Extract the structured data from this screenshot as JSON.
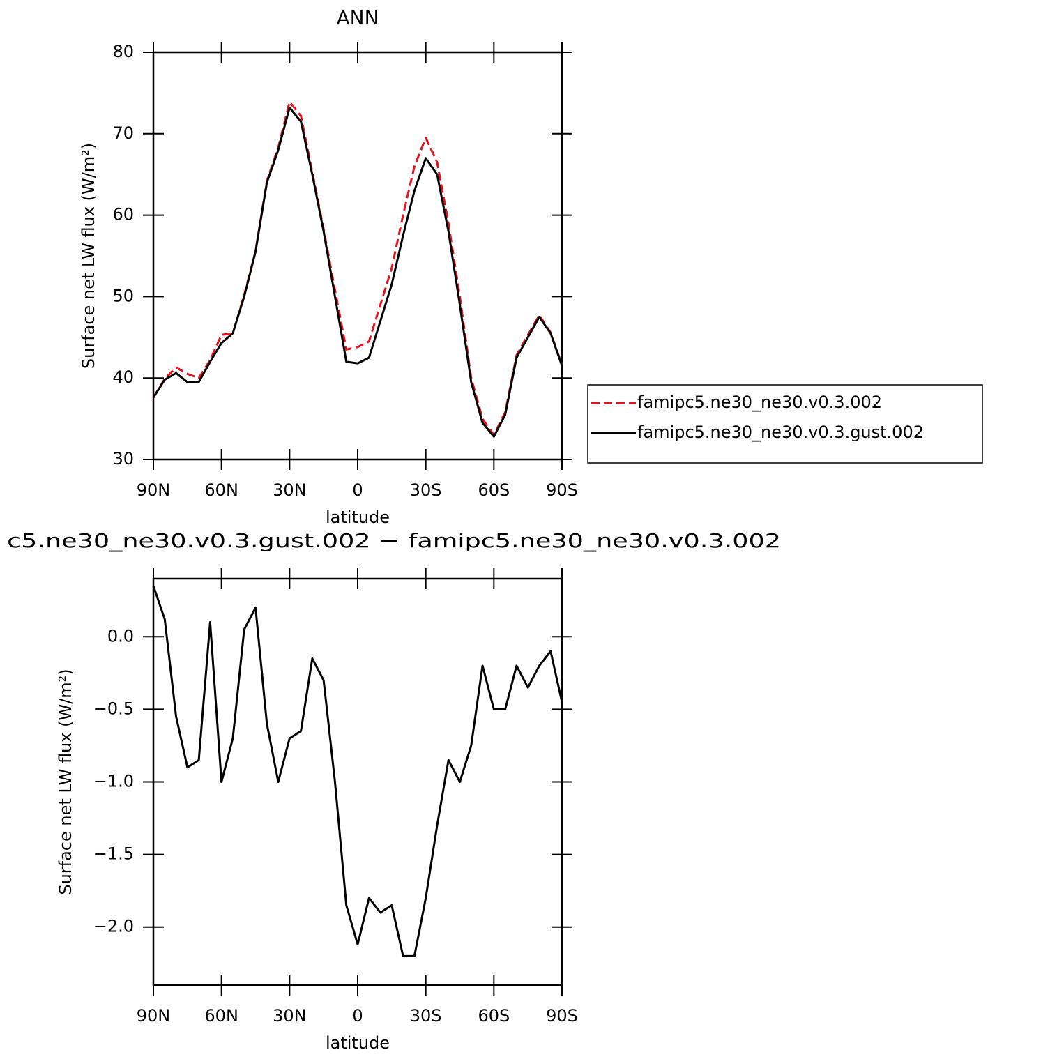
{
  "chart_data": [
    {
      "type": "line",
      "title": "ANN",
      "xlabel": "latitude",
      "ylabel": "Surface net LW flux (W/m²)",
      "x": [
        90,
        85,
        80,
        75,
        70,
        65,
        60,
        55,
        50,
        45,
        40,
        35,
        30,
        25,
        20,
        15,
        10,
        5,
        0,
        -5,
        -10,
        -15,
        -20,
        -25,
        -30,
        -35,
        -40,
        -45,
        -50,
        -55,
        -60,
        -65,
        -70,
        -75,
        -80,
        -85,
        -90
      ],
      "xlim": [
        90,
        -90
      ],
      "xticks": [
        {
          "value": 90,
          "label": "90N"
        },
        {
          "value": 60,
          "label": "60N"
        },
        {
          "value": 30,
          "label": "30N"
        },
        0,
        {
          "value": -30,
          "label": "30S"
        },
        {
          "value": -60,
          "label": "60S"
        },
        {
          "value": -90,
          "label": "90S"
        }
      ],
      "ylim": [
        30,
        80
      ],
      "yticks": [
        30,
        40,
        50,
        60,
        70,
        80
      ],
      "legend": "outside-right",
      "series": [
        {
          "name": "famipc5.ne30_ne30.v0.3.002",
          "color": "#e8101a",
          "linestyle": "dashed",
          "values": [
            37.6,
            39.9,
            41.3,
            40.5,
            40.0,
            42.2,
            45.3,
            45.5,
            50.2,
            55.6,
            64.2,
            68.3,
            73.9,
            72.2,
            65.3,
            58.3,
            50.8,
            43.5,
            43.8,
            44.5,
            49.0,
            53.5,
            60.0,
            66.0,
            69.5,
            66.5,
            59.0,
            50.0,
            40.0,
            35.0,
            33.0,
            35.8,
            42.8,
            45.3,
            47.7,
            45.6,
            41.6
          ]
        },
        {
          "name": "famipc5.ne30_ne30.v0.3.gust.002",
          "color": "#000000",
          "linestyle": "solid",
          "values": [
            37.6,
            39.8,
            40.6,
            39.5,
            39.5,
            42.0,
            44.3,
            45.5,
            50.0,
            55.5,
            64.0,
            68.0,
            73.2,
            71.5,
            65.0,
            58.0,
            50.0,
            42.0,
            41.8,
            42.5,
            47.0,
            51.5,
            57.5,
            63.0,
            67.0,
            65.0,
            58.0,
            49.0,
            39.5,
            34.5,
            32.8,
            35.5,
            42.5,
            45.0,
            47.5,
            45.5,
            41.5
          ]
        }
      ]
    },
    {
      "type": "line",
      "title": "c5.ne30_ne30.v0.3.gust.002 − famipc5.ne30_ne30.v0.3.002",
      "xlabel": "latitude",
      "ylabel": "Surface net LW flux (W/m²)",
      "x": [
        90,
        85,
        80,
        75,
        70,
        65,
        60,
        55,
        50,
        45,
        40,
        35,
        30,
        25,
        20,
        15,
        10,
        5,
        0,
        -5,
        -10,
        -15,
        -20,
        -25,
        -30,
        -35,
        -40,
        -45,
        -50,
        -55,
        -60,
        -65,
        -70,
        -75,
        -80,
        -85,
        -90
      ],
      "xlim": [
        90,
        -90
      ],
      "xticks": [
        {
          "value": 90,
          "label": "90N"
        },
        {
          "value": 60,
          "label": "60N"
        },
        {
          "value": 30,
          "label": "30N"
        },
        0,
        {
          "value": -30,
          "label": "30S"
        },
        {
          "value": -60,
          "label": "60S"
        },
        {
          "value": -90,
          "label": "90S"
        }
      ],
      "ylim": [
        -2.4,
        0.4
      ],
      "yticks": [
        {
          "value": -2,
          "label": "−2.0"
        },
        {
          "value": -1.5,
          "label": "−1.5"
        },
        {
          "value": -1,
          "label": "−1.0"
        },
        {
          "value": -0.5,
          "label": "−0.5"
        },
        {
          "value": 0,
          "label": "0.0"
        }
      ],
      "series": [
        {
          "color": "#000000",
          "linestyle": "solid",
          "values": [
            0.35,
            0.12,
            -0.55,
            -0.9,
            -0.85,
            0.1,
            -1.0,
            -0.7,
            0.05,
            0.2,
            -0.6,
            -1.0,
            -0.7,
            -0.65,
            -0.15,
            -0.3,
            -1.0,
            -1.85,
            -2.12,
            -1.8,
            -1.9,
            -1.85,
            -2.2,
            -2.2,
            -1.8,
            -1.3,
            -0.85,
            -1.0,
            -0.75,
            -0.2,
            -0.5,
            -0.5,
            -0.2,
            -0.35,
            -0.2,
            -0.1,
            -0.45
          ]
        }
      ]
    }
  ]
}
